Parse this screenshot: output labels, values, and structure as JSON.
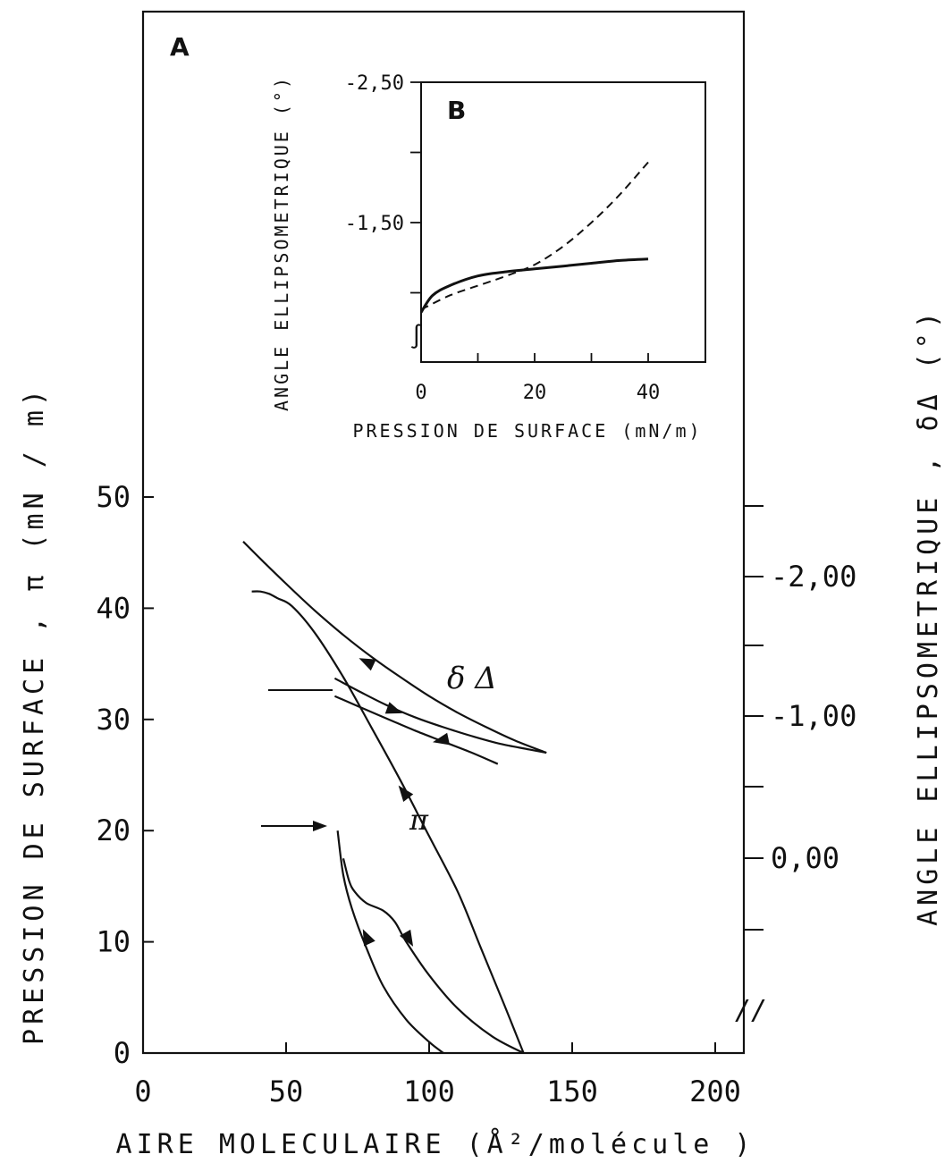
{
  "chart_data": [
    {
      "panel": "A",
      "type": "line",
      "xlabel": "AIRE MOLECULAIRE (Å²/molécule )",
      "ylabel": "PRESSION DE SURFACE , π (mN / m)",
      "y2label": "ANGLE ELLIPSOMETRIQUE , δΔ (°)",
      "xlim": [
        0,
        210
      ],
      "ylim": [
        0,
        52
      ],
      "xticks": [
        "0",
        "50",
        "100",
        "150",
        "200"
      ],
      "yticks": [
        "0",
        "10",
        "20",
        "30",
        "40",
        "50"
      ],
      "y2ticks": [
        "0,00",
        "-1,00",
        "-2,00"
      ],
      "y2_axis_break": "//",
      "curve_labels": {
        "pi": "π",
        "delta": "δ Δ"
      },
      "series": [
        {
          "name": "π",
          "role": "pi-compression",
          "x": [
            133,
            126,
            118,
            110,
            100,
            90,
            80,
            70,
            60,
            52,
            47,
            44,
            41,
            38
          ],
          "y": [
            0,
            4.5,
            9.5,
            14.5,
            19.5,
            24.5,
            29.2,
            33.8,
            37.8,
            40.2,
            40.9,
            41.3,
            41.5,
            41.5
          ]
        },
        {
          "name": "π",
          "role": "pi-expansion-upper",
          "x": [
            70,
            72,
            74,
            78,
            84,
            88,
            92,
            100,
            110,
            122,
            133
          ],
          "y": [
            17.5,
            15.5,
            14.5,
            13.5,
            12.8,
            11.8,
            10,
            7,
            4,
            1.5,
            0
          ]
        },
        {
          "name": "π",
          "role": "pi-expansion-lower",
          "x": [
            68,
            70,
            73,
            78,
            84,
            92,
            100,
            105
          ],
          "y": [
            20,
            16,
            13,
            9.5,
            6,
            3,
            1,
            0
          ]
        },
        {
          "name": "δΔ",
          "role": "delta-compression",
          "x": [
            141,
            130,
            120,
            110,
            100,
            90,
            80,
            70,
            60,
            50,
            42,
            35
          ],
          "y": [
            27,
            28.1,
            29.3,
            30.6,
            32.1,
            33.8,
            35.6,
            37.6,
            39.8,
            42.2,
            44.2,
            46
          ]
        },
        {
          "name": "δΔ",
          "role": "delta-reexpansion",
          "x": [
            67,
            75,
            85,
            95,
            105,
            115,
            125,
            135,
            141
          ],
          "y": [
            33.7,
            32.6,
            31.3,
            30.2,
            29.3,
            28.5,
            27.8,
            27.3,
            27
          ]
        },
        {
          "name": "δΔ",
          "role": "delta-recompression",
          "x": [
            67,
            75,
            85,
            95,
            105,
            115,
            124
          ],
          "y": [
            32.1,
            31.2,
            30.1,
            29,
            28,
            27,
            26
          ]
        }
      ],
      "markers": [
        {
          "x": 61,
          "y": 32
        },
        {
          "x": 63,
          "y": 20
        }
      ],
      "panel_letter": "A"
    },
    {
      "panel": "B",
      "type": "line",
      "xlabel": "PRESSION DE SURFACE (mN/m)",
      "ylabel": "ANGLE ELLIPSOMETRIQUE (°)",
      "xlim": [
        0,
        50
      ],
      "ylim": [
        -0.7,
        -2.5
      ],
      "xticks": [
        "0",
        "20",
        "40"
      ],
      "yticks": [
        "-1,50",
        "-2,50"
      ],
      "axis_break": "∫",
      "series": [
        {
          "line_style": "solid",
          "x": [
            0,
            2,
            5,
            10,
            15,
            20,
            25,
            30,
            35,
            40
          ],
          "y": [
            -0.86,
            -0.98,
            -1.05,
            -1.12,
            -1.15,
            -1.17,
            -1.19,
            -1.21,
            -1.23,
            -1.24
          ]
        },
        {
          "line_style": "dashed",
          "x": [
            0,
            5,
            10,
            15,
            20,
            25,
            30,
            35,
            40
          ],
          "y": [
            -0.88,
            -0.98,
            -1.05,
            -1.12,
            -1.2,
            -1.33,
            -1.5,
            -1.7,
            -1.93
          ]
        }
      ],
      "panel_letter": "B"
    }
  ]
}
